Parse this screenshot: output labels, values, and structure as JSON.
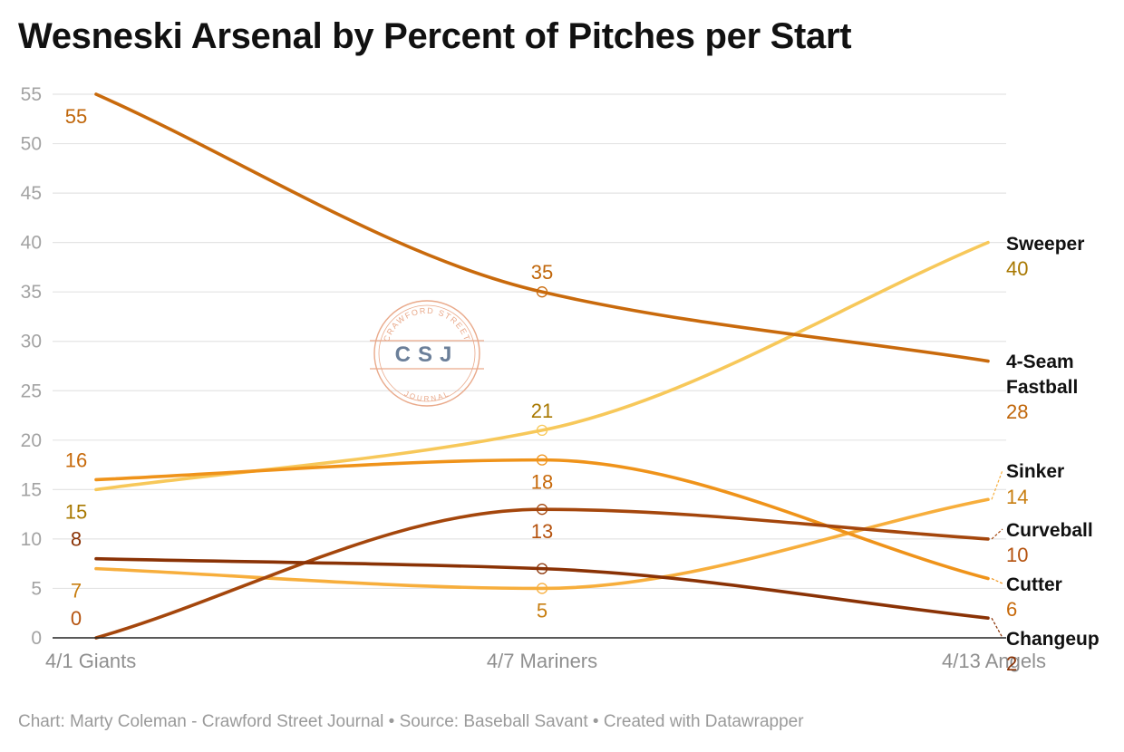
{
  "title": "Wesneski Arsenal by Percent of Pitches per Start",
  "footer": "Chart: Marty Coleman - Crawford Street Journal • Source: Baseball Savant • Created with Datawrapper",
  "watermark": {
    "top_text": "CRAWFORD STREET",
    "center_text": "CSJ",
    "bottom_text": "JOURNAL",
    "color": "#e9a98a"
  },
  "chart_data": {
    "type": "line",
    "title": "Wesneski Arsenal by Percent of Pitches per Start",
    "xlabel": "",
    "ylabel": "",
    "categories": [
      "4/1 Giants",
      "4/7 Mariners",
      "4/13 Angels"
    ],
    "ylim": [
      0,
      55
    ],
    "yticks": [
      0,
      5,
      10,
      15,
      20,
      25,
      30,
      35,
      40,
      45,
      50,
      55
    ],
    "grid": true,
    "legend": "direct labels at line ends (right)",
    "series": [
      {
        "name": "Sweeper",
        "values": [
          15,
          21,
          40
        ],
        "color": "#f7c85a",
        "label_color": "#a87800",
        "end_value_label": "40",
        "point_labels": [
          {
            "index": 0,
            "text": "15"
          },
          {
            "index": 1,
            "text": "21"
          }
        ]
      },
      {
        "name": "4-Seam Fastball",
        "name_lines": [
          "4-Seam",
          "Fastball"
        ],
        "values": [
          55,
          35,
          28
        ],
        "color": "#c96a0c",
        "label_color": "#c0660a",
        "end_value_label": "28",
        "point_labels": [
          {
            "index": 0,
            "text": "55"
          },
          {
            "index": 1,
            "text": "35"
          }
        ]
      },
      {
        "name": "Sinker",
        "values": [
          7,
          5,
          14
        ],
        "color": "#f7ae3c",
        "label_color": "#c87e10",
        "end_value_label": "14",
        "point_labels": [
          {
            "index": 0,
            "text": "7"
          },
          {
            "index": 1,
            "text": "5"
          }
        ]
      },
      {
        "name": "Curveball",
        "values": [
          0,
          13,
          10
        ],
        "color": "#a4460c",
        "label_color": "#b5530f",
        "end_value_label": "10",
        "point_labels": [
          {
            "index": 0,
            "text": "0"
          },
          {
            "index": 1,
            "text": "13"
          }
        ]
      },
      {
        "name": "Cutter",
        "values": [
          16,
          18,
          6
        ],
        "color": "#ef931a",
        "label_color": "#c7690a",
        "end_value_label": "6",
        "point_labels": [
          {
            "index": 0,
            "text": "16"
          },
          {
            "index": 1,
            "text": "18"
          }
        ]
      },
      {
        "name": "Changeup",
        "values": [
          8,
          7,
          2
        ],
        "color": "#8a3205",
        "label_color": "#8a3205",
        "end_value_label": "2",
        "point_labels": [
          {
            "index": 0,
            "text": "8"
          }
        ]
      }
    ]
  }
}
